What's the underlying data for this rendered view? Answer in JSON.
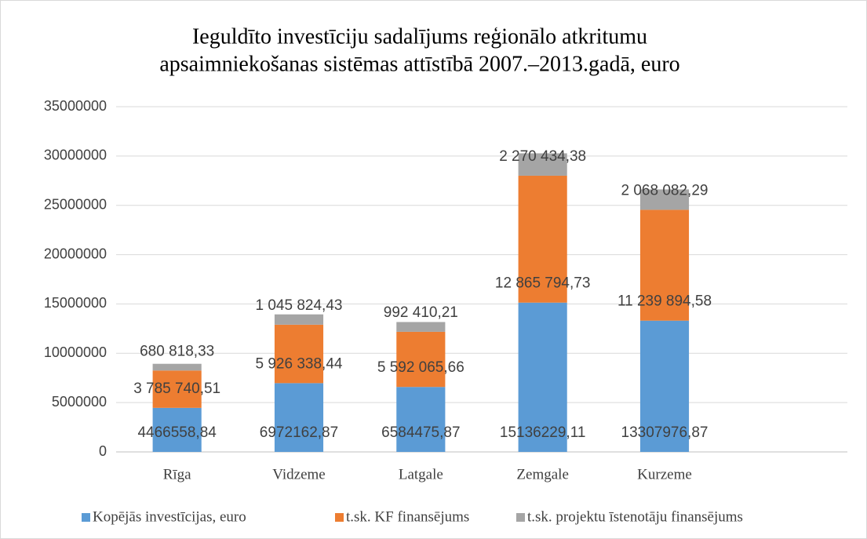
{
  "chart_data": {
    "type": "bar",
    "stacked": true,
    "title": [
      "Ieguldīto investīciju sadalījums reģionālo atkritumu",
      "apsaimniekošanas sistēmas attīstībā 2007.–2013.gadā, euro"
    ],
    "categories": [
      "Rīga",
      "Vidzeme",
      "Latgale",
      "Zemgale",
      "Kurzeme",
      null
    ],
    "series": [
      {
        "name": "Kopējās investīcijas, euro",
        "color": "#5b9bd5",
        "values": [
          4466558.84,
          6972162.87,
          6584475.87,
          15136229.11,
          13307976.87,
          null
        ],
        "value_labels": [
          "4466558,84",
          "6972162,87",
          "6584475,87",
          "15136229,11",
          "13307976,87",
          null
        ]
      },
      {
        "name": "t.sk. KF finansējums",
        "color": "#ed7d31",
        "values": [
          3785740.51,
          5926338.44,
          5592065.66,
          12865794.73,
          11239894.58,
          null
        ],
        "value_labels": [
          "3 785 740,51",
          "5 926 338,44",
          "5 592 065,66",
          "12 865 794,73",
          "11 239 894,58",
          null
        ]
      },
      {
        "name": "t.sk. projektu īstenotāju finansējums",
        "color": "#a5a5a5",
        "values": [
          680818.33,
          1045824.43,
          992410.21,
          2270434.38,
          2068082.29,
          null
        ],
        "value_labels": [
          "680 818,33",
          "1 045 824,43",
          "992 410,21",
          "2 270 434,38",
          "2 068 082,29",
          null
        ]
      }
    ],
    "ylim": [
      0,
      35000000
    ],
    "yticks": [
      0,
      5000000,
      10000000,
      15000000,
      20000000,
      25000000,
      30000000,
      35000000
    ],
    "grid": true,
    "legend": "bottom"
  }
}
